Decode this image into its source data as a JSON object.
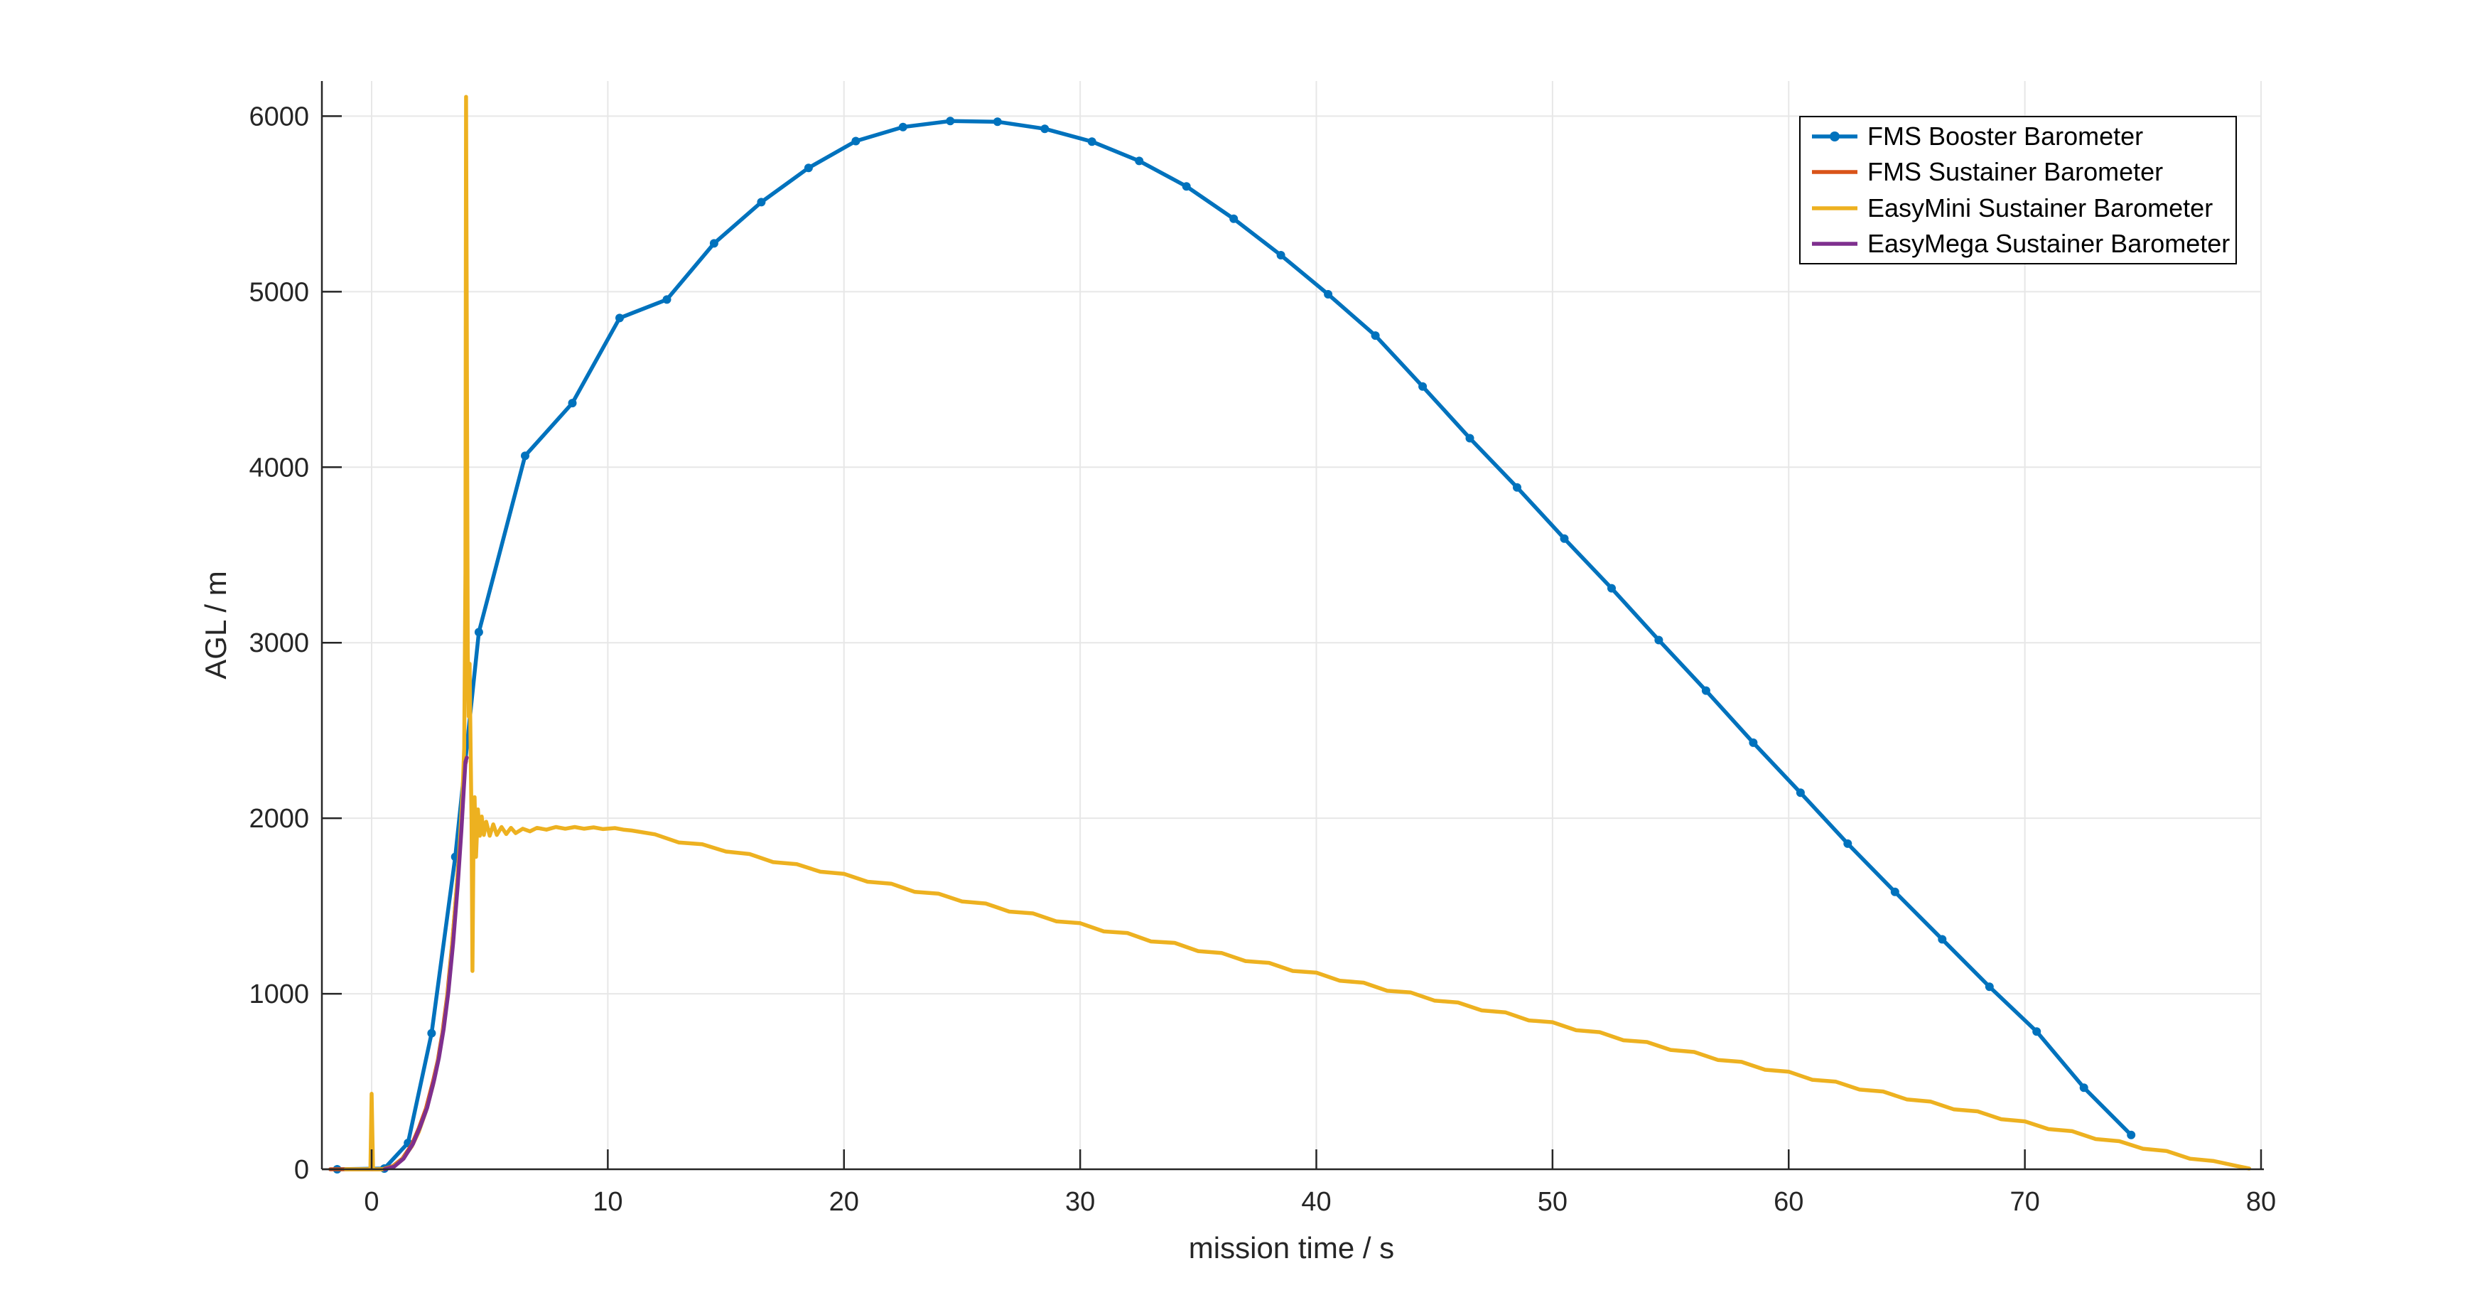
{
  "figure": {
    "background": "#ffffff",
    "axis_color": "#262626",
    "grid_color": "#e7e7e7",
    "tick_label_fontsize": 38,
    "axis_label_fontsize": 42
  },
  "chart_data": {
    "type": "line",
    "title": "",
    "xlabel": "mission time / s",
    "ylabel": "AGL / m",
    "xlim": [
      -2.106,
      80
    ],
    "ylim": [
      0,
      6200
    ],
    "x_ticks": [
      0,
      10,
      20,
      30,
      40,
      50,
      60,
      70,
      80
    ],
    "y_ticks": [
      0,
      1000,
      2000,
      3000,
      4000,
      5000,
      6000
    ],
    "grid": true,
    "legend": {
      "position": "top-right",
      "border_color": "#000000",
      "background": "#ffffff"
    },
    "series": [
      {
        "name": "FMS Booster Barometer",
        "color": "#0072BD",
        "marker": "circle",
        "marker_radius": 6,
        "line_width": 5.5,
        "points": [
          [
            -1.46,
            0
          ],
          [
            0.54,
            4
          ],
          [
            1.54,
            150
          ],
          [
            2.54,
            775
          ],
          [
            3.54,
            1780
          ],
          [
            4.54,
            3060
          ],
          [
            6.5,
            4065
          ],
          [
            8.5,
            4365
          ],
          [
            10.5,
            4850
          ],
          [
            12.5,
            4955
          ],
          [
            14.5,
            5275
          ],
          [
            16.5,
            5510
          ],
          [
            18.5,
            5705
          ],
          [
            20.5,
            5858
          ],
          [
            22.5,
            5938
          ],
          [
            24.5,
            5972
          ],
          [
            26.5,
            5968
          ],
          [
            28.5,
            5928
          ],
          [
            30.5,
            5855
          ],
          [
            32.5,
            5745
          ],
          [
            34.5,
            5600
          ],
          [
            36.5,
            5415
          ],
          [
            38.5,
            5208
          ],
          [
            40.5,
            4985
          ],
          [
            42.5,
            4750
          ],
          [
            44.5,
            4460
          ],
          [
            46.5,
            4165
          ],
          [
            48.5,
            3885
          ],
          [
            50.5,
            3593
          ],
          [
            52.5,
            3310
          ],
          [
            54.5,
            3015
          ],
          [
            56.5,
            2727
          ],
          [
            58.5,
            2430
          ],
          [
            60.5,
            2145
          ],
          [
            62.5,
            1855
          ],
          [
            64.5,
            1580
          ],
          [
            66.5,
            1310
          ],
          [
            68.5,
            1040
          ],
          [
            70.5,
            785
          ],
          [
            72.5,
            465
          ],
          [
            74.5,
            195
          ]
        ]
      },
      {
        "name": "FMS Sustainer Barometer",
        "color": "#D95319",
        "marker": "none",
        "line_width": 5.5,
        "points": [
          [
            -1.75,
            0
          ],
          [
            0.45,
            0
          ],
          [
            0.9,
            18
          ],
          [
            1.3,
            60
          ],
          [
            1.7,
            140
          ],
          [
            2.0,
            235
          ],
          [
            2.3,
            345
          ],
          [
            2.6,
            500
          ],
          [
            2.8,
            620
          ],
          [
            3.0,
            780
          ],
          [
            3.2,
            990
          ],
          [
            3.4,
            1270
          ],
          [
            3.6,
            1600
          ],
          [
            3.75,
            1890
          ],
          [
            3.87,
            2130
          ],
          [
            3.95,
            2300
          ],
          [
            4.0,
            2325
          ]
        ]
      },
      {
        "name": "EasyMini Sustainer Barometer",
        "color": "#EDB120",
        "marker": "none",
        "line_width": 5.5,
        "points": [
          [
            -1.1,
            0
          ],
          [
            -0.05,
            0
          ],
          [
            0,
            430
          ],
          [
            0.06,
            0
          ],
          [
            0.5,
            0
          ],
          [
            0.9,
            15
          ],
          [
            1.3,
            55
          ],
          [
            1.7,
            130
          ],
          [
            2.0,
            215
          ],
          [
            2.3,
            330
          ],
          [
            2.6,
            480
          ],
          [
            2.9,
            680
          ],
          [
            3.1,
            860
          ],
          [
            3.3,
            1100
          ],
          [
            3.5,
            1430
          ],
          [
            3.7,
            1780
          ],
          [
            3.85,
            2150
          ],
          [
            3.92,
            2400
          ],
          [
            3.97,
            3400
          ],
          [
            4.0,
            6110
          ],
          [
            4.03,
            4800
          ],
          [
            4.07,
            2950
          ],
          [
            4.11,
            2580
          ],
          [
            4.15,
            2880
          ],
          [
            4.19,
            2400
          ],
          [
            4.23,
            1990
          ],
          [
            4.27,
            1130
          ],
          [
            4.31,
            1850
          ],
          [
            4.36,
            2120
          ],
          [
            4.42,
            1780
          ],
          [
            4.5,
            2050
          ],
          [
            4.58,
            1900
          ],
          [
            4.66,
            2010
          ],
          [
            4.75,
            1905
          ],
          [
            4.85,
            1980
          ],
          [
            5.0,
            1900
          ],
          [
            5.15,
            1965
          ],
          [
            5.3,
            1905
          ],
          [
            5.5,
            1950
          ],
          [
            5.7,
            1910
          ],
          [
            5.9,
            1945
          ],
          [
            6.1,
            1915
          ],
          [
            6.4,
            1940
          ],
          [
            6.7,
            1925
          ],
          [
            7.0,
            1945
          ],
          [
            7.4,
            1935
          ],
          [
            7.8,
            1950
          ],
          [
            8.2,
            1940
          ],
          [
            8.6,
            1950
          ],
          [
            9.0,
            1940
          ],
          [
            9.4,
            1948
          ],
          [
            9.8,
            1938
          ],
          [
            10.3,
            1944
          ],
          [
            10.7,
            1934
          ],
          [
            11,
            1930
          ],
          [
            12,
            1908
          ],
          [
            13,
            1862
          ],
          [
            14,
            1852
          ],
          [
            15,
            1810
          ],
          [
            16,
            1796
          ],
          [
            17,
            1750
          ],
          [
            18,
            1738
          ],
          [
            19,
            1695
          ],
          [
            20,
            1683
          ],
          [
            21,
            1638
          ],
          [
            22,
            1627
          ],
          [
            23,
            1580
          ],
          [
            24,
            1570
          ],
          [
            25,
            1526
          ],
          [
            26,
            1514
          ],
          [
            27,
            1468
          ],
          [
            28,
            1458
          ],
          [
            29,
            1412
          ],
          [
            30,
            1402
          ],
          [
            31,
            1355
          ],
          [
            32,
            1346
          ],
          [
            33,
            1298
          ],
          [
            34,
            1290
          ],
          [
            35,
            1243
          ],
          [
            36,
            1232
          ],
          [
            37,
            1186
          ],
          [
            38,
            1176
          ],
          [
            39,
            1130
          ],
          [
            40,
            1120
          ],
          [
            41,
            1074
          ],
          [
            42,
            1063
          ],
          [
            43,
            1017
          ],
          [
            44,
            1007
          ],
          [
            45,
            961
          ],
          [
            46,
            950
          ],
          [
            47,
            905
          ],
          [
            48,
            894
          ],
          [
            49,
            848
          ],
          [
            50,
            838
          ],
          [
            51,
            792
          ],
          [
            52,
            781
          ],
          [
            53,
            735
          ],
          [
            54,
            725
          ],
          [
            55,
            680
          ],
          [
            56,
            668
          ],
          [
            57,
            623
          ],
          [
            58,
            612
          ],
          [
            59,
            567
          ],
          [
            60,
            556
          ],
          [
            61,
            510
          ],
          [
            62,
            499
          ],
          [
            63,
            454
          ],
          [
            64,
            443
          ],
          [
            65,
            398
          ],
          [
            66,
            386
          ],
          [
            67,
            341
          ],
          [
            68,
            330
          ],
          [
            69,
            285
          ],
          [
            70,
            273
          ],
          [
            71,
            229
          ],
          [
            72,
            217
          ],
          [
            73,
            172
          ],
          [
            74,
            160
          ],
          [
            75,
            117
          ],
          [
            76,
            104
          ],
          [
            77,
            60
          ],
          [
            78,
            47
          ],
          [
            79,
            18
          ],
          [
            79.5,
            4
          ]
        ]
      },
      {
        "name": "EasyMega Sustainer Barometer",
        "color": "#7E2F8E",
        "marker": "none",
        "line_width": 5.5,
        "points": [
          [
            0.55,
            0
          ],
          [
            0.95,
            15
          ],
          [
            1.35,
            60
          ],
          [
            1.75,
            145
          ],
          [
            2.05,
            240
          ],
          [
            2.35,
            350
          ],
          [
            2.65,
            510
          ],
          [
            2.85,
            635
          ],
          [
            3.05,
            800
          ],
          [
            3.25,
            1010
          ],
          [
            3.45,
            1290
          ],
          [
            3.65,
            1625
          ],
          [
            3.8,
            1930
          ],
          [
            3.9,
            2160
          ],
          [
            3.97,
            2320
          ],
          [
            4.03,
            2345
          ]
        ]
      }
    ]
  }
}
